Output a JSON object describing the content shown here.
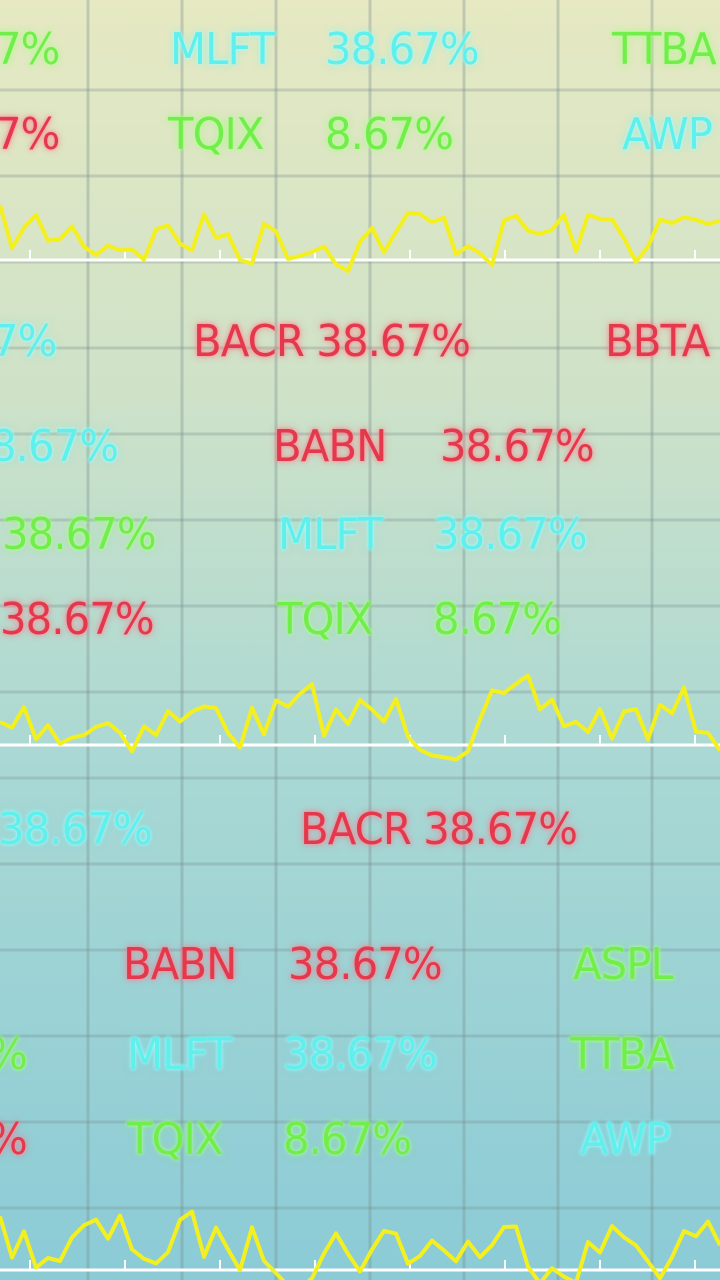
{
  "labels": [
    "7%",
    "MLFT",
    "38.67%",
    "TTBA",
    "7%",
    "TQIX",
    "8.67%",
    "AWP",
    "7%",
    "BACR 38.67%",
    "BBTA",
    "8.67%",
    "BABN",
    "38.67%",
    "38.67%",
    "MLFT",
    "38.67%",
    "38.67%",
    "TQIX",
    "8.67%",
    "38.67%",
    "BACR 38.67%",
    "BABN",
    "38.67%",
    "ASPL",
    "%",
    "MLFT",
    "38.67%",
    "TTBA",
    "%",
    "TQIX",
    "8.67%",
    "AWP"
  ]
}
